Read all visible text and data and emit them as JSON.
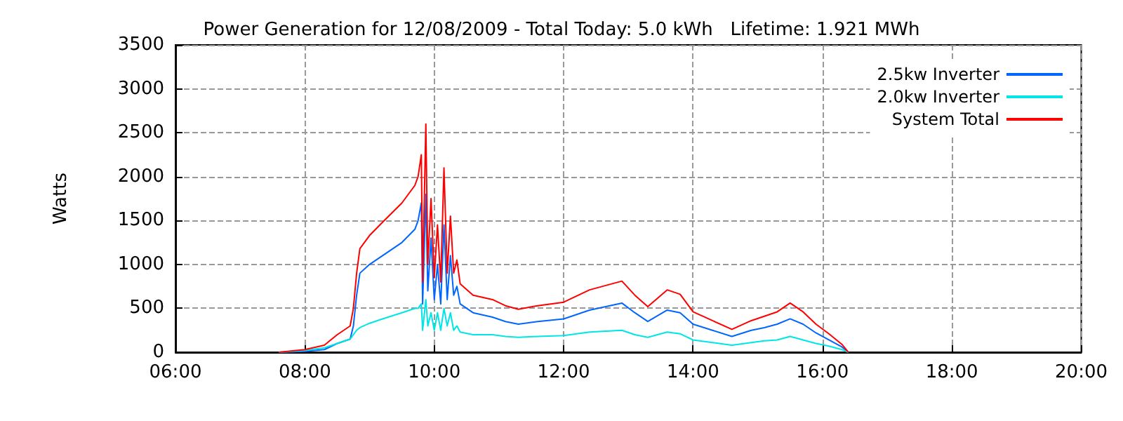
{
  "chart_data": {
    "type": "line",
    "title": "Power Generation for 12/08/2009 - Total Today: 5.0 kWh   Lifetime: 1.921 MWh",
    "ylabel": "Watts",
    "xlim": [
      6,
      20
    ],
    "xticks": [
      {
        "value": 6,
        "label": "06:00"
      },
      {
        "value": 8,
        "label": "08:00"
      },
      {
        "value": 10,
        "label": "10:00"
      },
      {
        "value": 12,
        "label": "12:00"
      },
      {
        "value": 14,
        "label": "14:00"
      },
      {
        "value": 16,
        "label": "16:00"
      },
      {
        "value": 18,
        "label": "18:00"
      },
      {
        "value": 20,
        "label": "20:00"
      }
    ],
    "ylim": [
      0,
      3500
    ],
    "yticks": [
      0,
      500,
      1000,
      1500,
      2000,
      2500,
      3000,
      3500
    ],
    "grid": true,
    "legend": "top right",
    "line_style": "solid",
    "marker": "none",
    "series": [
      {
        "name": "2.5kw Inverter",
        "color": "#0066ff",
        "x": [
          7.6,
          8.0,
          8.3,
          8.5,
          8.7,
          8.75,
          8.8,
          8.85,
          9.0,
          9.2,
          9.5,
          9.7,
          9.75,
          9.8,
          9.82,
          9.87,
          9.9,
          9.95,
          10.0,
          10.05,
          10.1,
          10.15,
          10.2,
          10.25,
          10.3,
          10.35,
          10.4,
          10.6,
          10.9,
          11.1,
          11.3,
          11.6,
          12.0,
          12.4,
          12.9,
          13.1,
          13.3,
          13.6,
          13.8,
          14.0,
          14.3,
          14.6,
          14.9,
          15.1,
          15.3,
          15.5,
          15.7,
          15.9,
          16.1,
          16.3,
          16.4
        ],
        "values": [
          0,
          10,
          30,
          100,
          150,
          300,
          650,
          900,
          1000,
          1100,
          1250,
          1400,
          1500,
          1700,
          550,
          1800,
          700,
          1300,
          600,
          1000,
          550,
          1450,
          600,
          1100,
          650,
          750,
          550,
          450,
          400,
          350,
          320,
          350,
          380,
          480,
          560,
          450,
          350,
          480,
          450,
          320,
          250,
          180,
          250,
          280,
          320,
          380,
          320,
          220,
          140,
          60,
          0
        ]
      },
      {
        "name": "2.0kw Inverter",
        "color": "#00e5e5",
        "x": [
          7.6,
          8.0,
          8.3,
          8.5,
          8.7,
          8.75,
          8.8,
          8.85,
          9.0,
          9.2,
          9.5,
          9.7,
          9.75,
          9.8,
          9.82,
          9.87,
          9.9,
          9.95,
          10.0,
          10.05,
          10.1,
          10.15,
          10.2,
          10.25,
          10.3,
          10.35,
          10.4,
          10.6,
          10.9,
          11.1,
          11.3,
          11.6,
          12.0,
          12.4,
          12.9,
          13.1,
          13.3,
          13.6,
          13.8,
          14.0,
          14.3,
          14.6,
          14.9,
          15.1,
          15.3,
          15.5,
          15.7,
          15.9,
          16.1,
          16.3,
          16.4
        ],
        "values": [
          0,
          20,
          50,
          100,
          150,
          200,
          250,
          280,
          330,
          380,
          450,
          500,
          500,
          550,
          250,
          600,
          300,
          450,
          250,
          450,
          250,
          500,
          300,
          450,
          250,
          300,
          230,
          200,
          200,
          180,
          170,
          180,
          190,
          230,
          250,
          200,
          170,
          230,
          210,
          140,
          110,
          80,
          110,
          130,
          140,
          180,
          140,
          100,
          70,
          30,
          0
        ]
      },
      {
        "name": "System Total",
        "color": "#ff0000",
        "x": [
          7.6,
          8.0,
          8.3,
          8.5,
          8.7,
          8.75,
          8.8,
          8.85,
          9.0,
          9.2,
          9.5,
          9.7,
          9.75,
          9.8,
          9.82,
          9.87,
          9.9,
          9.95,
          10.0,
          10.05,
          10.1,
          10.15,
          10.2,
          10.25,
          10.3,
          10.35,
          10.4,
          10.6,
          10.9,
          11.1,
          11.3,
          11.6,
          12.0,
          12.4,
          12.9,
          13.1,
          13.3,
          13.6,
          13.8,
          14.0,
          14.3,
          14.6,
          14.9,
          15.1,
          15.3,
          15.5,
          15.7,
          15.9,
          16.1,
          16.3,
          16.4
        ],
        "values": [
          0,
          30,
          80,
          200,
          300,
          500,
          900,
          1180,
          1330,
          1480,
          1700,
          1900,
          2000,
          2250,
          800,
          2600,
          1000,
          1750,
          850,
          1450,
          800,
          2100,
          900,
          1550,
          900,
          1050,
          780,
          650,
          600,
          530,
          490,
          530,
          570,
          710,
          810,
          650,
          520,
          710,
          660,
          460,
          360,
          260,
          360,
          410,
          460,
          560,
          460,
          320,
          210,
          90,
          0
        ]
      }
    ]
  }
}
